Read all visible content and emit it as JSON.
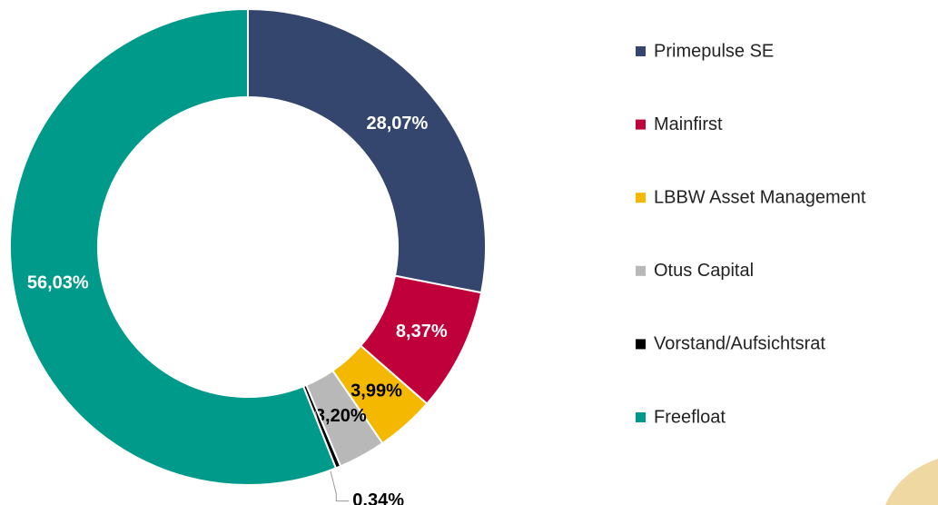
{
  "chart_data": {
    "type": "pie",
    "donut": true,
    "categories": [
      "Primepulse SE",
      "Mainfirst",
      "LBBW Asset Management",
      "Otus Capital",
      "Vorstand/Aufsichtsrat",
      "Freefloat"
    ],
    "values": [
      28.07,
      8.37,
      3.99,
      3.2,
      0.34,
      56.03
    ],
    "value_labels": [
      "28,07%",
      "8,37%",
      "3,99%",
      "3,20%",
      "0,34%",
      "56,03%"
    ],
    "colors": [
      "#34466e",
      "#c0003a",
      "#f5b800",
      "#b8b8b8",
      "#000000",
      "#009a8a"
    ],
    "legend": "right"
  }
}
